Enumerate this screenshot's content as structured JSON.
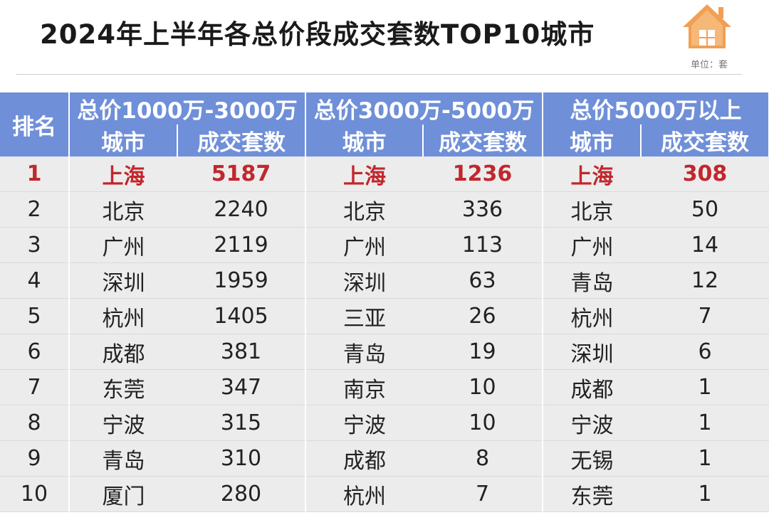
{
  "title": "2024年上半年各总价段成交套数TOP10城市",
  "unit_label": "单位：套",
  "icons": {
    "logo": "house-icon"
  },
  "colors": {
    "header_bg": "#6f8fd8",
    "highlight_text": "#c1272d",
    "body_bg": "#ececec"
  },
  "table": {
    "rank_header": "排名",
    "groups": [
      "总价1000万-3000万",
      "总价3000万-5000万",
      "总价5000万以上"
    ],
    "sub_headers": [
      "城市",
      "成交套数",
      "城市",
      "成交套数",
      "城市",
      "成交套数"
    ],
    "rows": [
      [
        "1",
        "上海",
        "5187",
        "上海",
        "1236",
        "上海",
        "308"
      ],
      [
        "2",
        "北京",
        "2240",
        "北京",
        "336",
        "北京",
        "50"
      ],
      [
        "3",
        "广州",
        "2119",
        "广州",
        "113",
        "广州",
        "14"
      ],
      [
        "4",
        "深圳",
        "1959",
        "深圳",
        "63",
        "青岛",
        "12"
      ],
      [
        "5",
        "杭州",
        "1405",
        "三亚",
        "26",
        "杭州",
        "7"
      ],
      [
        "6",
        "成都",
        "381",
        "青岛",
        "19",
        "深圳",
        "6"
      ],
      [
        "7",
        "东莞",
        "347",
        "南京",
        "10",
        "成都",
        "1"
      ],
      [
        "8",
        "宁波",
        "315",
        "宁波",
        "10",
        "宁波",
        "1"
      ],
      [
        "9",
        "青岛",
        "310",
        "成都",
        "8",
        "无锡",
        "1"
      ],
      [
        "10",
        "厦门",
        "280",
        "杭州",
        "7",
        "东莞",
        "1"
      ]
    ]
  }
}
